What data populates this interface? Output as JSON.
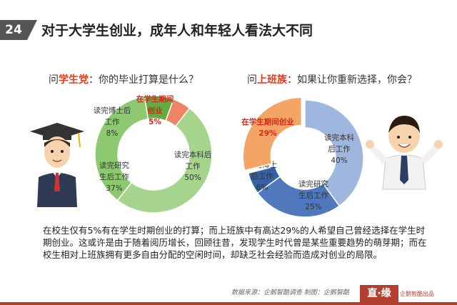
{
  "header": {
    "number": "24",
    "title": "对于大学生创业，成年人和年轻人看法大不同"
  },
  "question_left": {
    "prefix": "问",
    "highlight": "学生党",
    "suffix": "：你的毕业打算是什么？"
  },
  "question_right": {
    "prefix": "问",
    "highlight": "上班族",
    "suffix": "：如果让你重新选择，你会？"
  },
  "chart_data": [
    {
      "type": "pie",
      "name": "学生党",
      "slices": [
        {
          "label": "读完本科后工作",
          "lines": [
            "读完本科后",
            "工作",
            "50%"
          ],
          "value": 50,
          "color": "#a5d58c"
        },
        {
          "label": "读完研究生后工作",
          "lines": [
            "读完研究",
            "生后工作",
            "37%"
          ],
          "value": 37,
          "color": "#8cc970"
        },
        {
          "label": "读完博士后工作",
          "lines": [
            "读完博士后",
            "工作",
            "8%"
          ],
          "value": 8,
          "color": "#62ac44"
        },
        {
          "label": "在学生期间创业",
          "lines": [
            "在学生期间",
            "创业",
            "5%"
          ],
          "value": 5,
          "color": "#ed8465",
          "highlight": true
        }
      ]
    },
    {
      "type": "pie",
      "name": "上班族",
      "slices": [
        {
          "label": "读完本科后工作",
          "lines": [
            "读完本科",
            "后工作",
            "40%"
          ],
          "value": 40,
          "color": "#9fb6de"
        },
        {
          "label": "读完研究生后工作",
          "lines": [
            "读完研究",
            "生后工作",
            "25%"
          ],
          "value": 25,
          "color": "#5079bd"
        },
        {
          "label": "读完博士后工作",
          "lines": [
            "读完博士",
            "后工作",
            "6%"
          ],
          "value": 6,
          "color": "#3461a8"
        },
        {
          "label": "在学生期间创业",
          "lines": [
            "在学生期间创业",
            "29%"
          ],
          "value": 29,
          "color": "#f4a566",
          "highlight": true
        }
      ]
    }
  ],
  "body": {
    "text": "在校生仅有5%有在学生时期创业的打算；而上班族中有高达29%的人希望自己曾经选择在学生时期创业。这或许是由于随着阅历增长，回顾往昔，发现学生时代曾是某些重要趋势的萌芽期；而在校生相对上班族拥有更多自由分配的空闲时间，却缺乏社会经验而造成对创业的局限。"
  },
  "footer": {
    "source": "数据来源：企鹅智酷调查  制图：企鹅智酷",
    "logo": "直·缘",
    "logo_sub": "企鹅智酷出品"
  },
  "colors": {
    "accent": "#e43b1e",
    "dark": "#555555",
    "brand": "#b23f30"
  }
}
